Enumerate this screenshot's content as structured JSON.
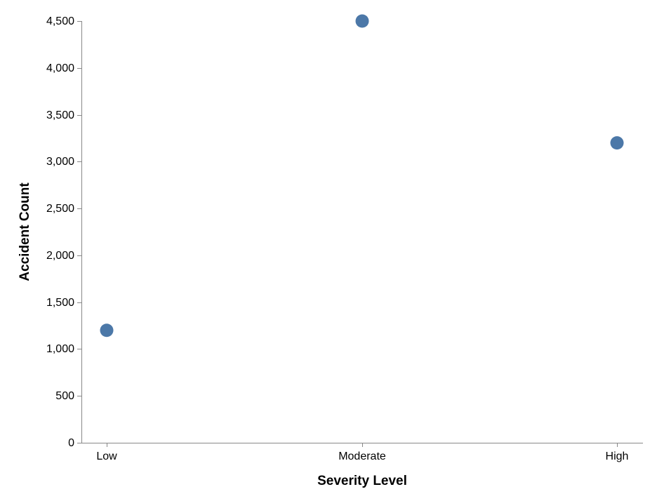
{
  "chart_data": {
    "type": "scatter",
    "title": "",
    "xlabel": "Severity Level",
    "ylabel": "Accident Count",
    "categories": [
      "Low",
      "Moderate",
      "High"
    ],
    "values": [
      1200,
      4500,
      3200
    ],
    "ylim": [
      0,
      4500
    ],
    "yticks": [
      0,
      500,
      1000,
      1500,
      2000,
      2500,
      3000,
      3500,
      4000,
      4500
    ],
    "ytick_labels": [
      "0",
      "500",
      "1,000",
      "1,500",
      "2,000",
      "2,500",
      "3,000",
      "3,500",
      "4,000",
      "4,500"
    ],
    "grid": false,
    "point_color": "#4c78a8"
  }
}
